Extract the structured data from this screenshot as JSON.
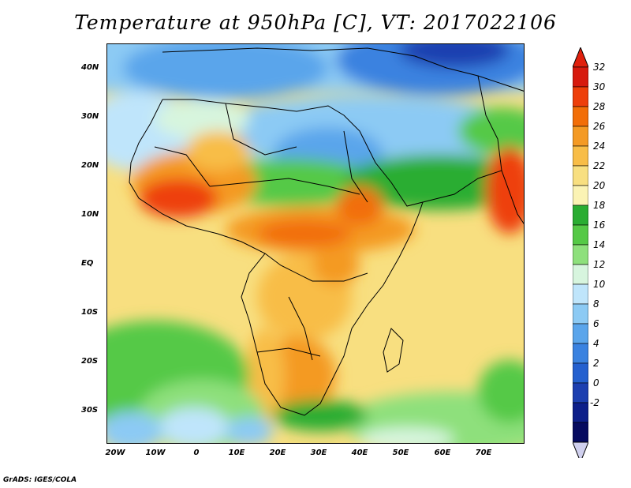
{
  "title": "Temperature at 950hPa [C], VT: 2017022106",
  "credit": "GrADS: IGES/COLA",
  "lat_labels": [
    "40N",
    "30N",
    "20N",
    "10N",
    "EQ",
    "10S",
    "20S",
    "30S"
  ],
  "lon_labels": [
    "20W",
    "10W",
    "0",
    "10E",
    "20E",
    "30E",
    "40E",
    "50E",
    "60E",
    "70E"
  ],
  "colorbar": {
    "labels": [
      "32",
      "30",
      "28",
      "26",
      "24",
      "22",
      "20",
      "18",
      "16",
      "14",
      "12",
      "10",
      "8",
      "6",
      "4",
      "2",
      "0",
      "-2"
    ],
    "colors": [
      "#d71a0e",
      "#ee3f0a",
      "#f26e08",
      "#f49a24",
      "#f8bd47",
      "#f8df80",
      "#fbf3b4",
      "#2aad32",
      "#55c946",
      "#8ee07c",
      "#d7f5de",
      "#bfe5fb",
      "#8ccaf4",
      "#5aa5eb",
      "#3a82e0",
      "#2460cf",
      "#1c3fb0",
      "#0d1f8a",
      "#060b60"
    ],
    "over_color": "#e0200d",
    "under_color": "#d0d0ee"
  }
}
